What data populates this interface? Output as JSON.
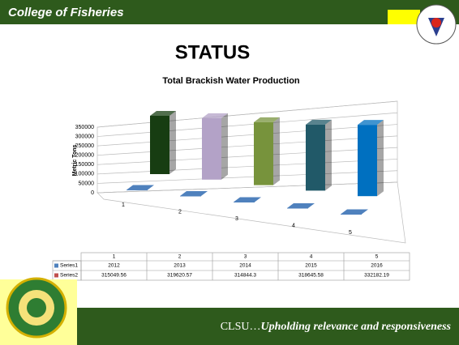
{
  "header": {
    "title": "College of Fisheries"
  },
  "slide": {
    "heading": "STATUS"
  },
  "chart_data": {
    "type": "bar3d",
    "title": "Total Brackish Water Production",
    "ylabel": "Metric Tons",
    "categories": [
      "1",
      "2",
      "3",
      "4",
      "5"
    ],
    "series": [
      {
        "name": "Series1",
        "color": "#4f81bd",
        "values": [
          2012,
          2013,
          2014,
          2015,
          2016
        ]
      },
      {
        "name": "Series2",
        "color": "#c0504d",
        "colors": [
          "#173d12",
          "#b3a2c7",
          "#77933c",
          "#215968",
          "#0070c0"
        ],
        "values": [
          315049.56,
          319620.57,
          314844.3,
          318645.58,
          332182.19
        ]
      }
    ],
    "ylim": [
      0,
      350000
    ],
    "yticks": [
      0,
      50000,
      100000,
      150000,
      200000,
      250000,
      300000,
      350000
    ],
    "grid": true,
    "data_table": true
  },
  "footer": {
    "prefix": "CLSU…",
    "motto": "Upholding relevance and responsiveness"
  }
}
